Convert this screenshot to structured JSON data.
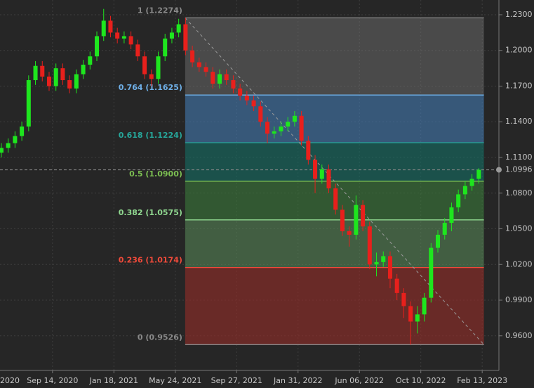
{
  "chart_data": {
    "type": "candlestick",
    "x": [
      -15,
      -13,
      -11,
      -9,
      -7,
      -5,
      -3,
      -1,
      1,
      3,
      5,
      7,
      9,
      11,
      13,
      15,
      17,
      19,
      21,
      23,
      25,
      27,
      29,
      31,
      33,
      35,
      37,
      39,
      41,
      43,
      45,
      47,
      49,
      51,
      53,
      55,
      57,
      59,
      61,
      63,
      65,
      67,
      69,
      71,
      73,
      75,
      77,
      79,
      81,
      83,
      85,
      87,
      89,
      91,
      93,
      95,
      97,
      99,
      101,
      103,
      105,
      107,
      109,
      111,
      113,
      115,
      117,
      119,
      121,
      123,
      125
    ],
    "open": [
      1.114,
      1.118,
      1.122,
      1.128,
      1.136,
      1.175,
      1.187,
      1.178,
      1.17,
      1.185,
      1.175,
      1.168,
      1.18,
      1.188,
      1.195,
      1.212,
      1.225,
      1.215,
      1.21,
      1.212,
      1.205,
      1.195,
      1.18,
      1.176,
      1.195,
      1.21,
      1.215,
      1.222,
      1.2,
      1.19,
      1.186,
      1.182,
      1.172,
      1.18,
      1.175,
      1.168,
      1.162,
      1.158,
      1.153,
      1.14,
      1.13,
      1.132,
      1.136,
      1.14,
      1.145,
      1.124,
      1.108,
      1.092,
      1.1,
      1.084,
      1.066,
      1.048,
      1.045,
      1.07,
      1.052,
      1.02,
      1.022,
      1.027,
      1.008,
      0.996,
      0.985,
      0.972,
      0.978,
      0.992,
      1.034,
      1.045,
      1.055,
      1.068,
      1.079,
      1.086,
      1.092
    ],
    "high": [
      1.122,
      1.126,
      1.132,
      1.14,
      1.179,
      1.191,
      1.191,
      1.182,
      1.189,
      1.189,
      1.179,
      1.184,
      1.192,
      1.199,
      1.216,
      1.2349,
      1.229,
      1.219,
      1.216,
      1.216,
      1.209,
      1.199,
      1.184,
      1.199,
      1.214,
      1.219,
      1.2266,
      1.2274,
      1.204,
      1.194,
      1.19,
      1.186,
      1.184,
      1.184,
      1.179,
      1.172,
      1.166,
      1.162,
      1.157,
      1.144,
      1.136,
      1.14,
      1.144,
      1.149,
      1.149,
      1.128,
      1.112,
      1.104,
      1.104,
      1.088,
      1.07,
      1.052,
      1.078,
      1.074,
      1.056,
      1.03,
      1.031,
      1.031,
      1.012,
      1.0,
      0.989,
      0.985,
      0.996,
      1.038,
      1.049,
      1.059,
      1.072,
      1.083,
      1.09,
      1.096,
      1.101
    ],
    "low": [
      1.11,
      1.114,
      1.118,
      1.124,
      1.132,
      1.171,
      1.174,
      1.166,
      1.166,
      1.171,
      1.164,
      1.164,
      1.176,
      1.184,
      1.191,
      1.208,
      1.211,
      1.206,
      1.206,
      1.201,
      1.191,
      1.176,
      1.17,
      1.172,
      1.191,
      1.206,
      1.211,
      1.196,
      1.186,
      1.182,
      1.178,
      1.168,
      1.168,
      1.171,
      1.164,
      1.158,
      1.154,
      1.149,
      1.136,
      1.122,
      1.126,
      1.128,
      1.132,
      1.136,
      1.12,
      1.104,
      1.08,
      1.088,
      1.08,
      1.062,
      1.044,
      1.035,
      1.041,
      1.048,
      1.016,
      1.01,
      1.018,
      1.0,
      0.99,
      0.975,
      0.9526,
      0.962,
      0.972,
      0.988,
      1.03,
      1.041,
      1.048,
      1.064,
      1.075,
      1.082,
      1.088
    ],
    "close": [
      1.118,
      1.122,
      1.128,
      1.136,
      1.175,
      1.187,
      1.178,
      1.17,
      1.185,
      1.175,
      1.168,
      1.18,
      1.188,
      1.195,
      1.212,
      1.225,
      1.215,
      1.21,
      1.212,
      1.205,
      1.195,
      1.18,
      1.176,
      1.195,
      1.21,
      1.215,
      1.222,
      1.2,
      1.19,
      1.186,
      1.182,
      1.172,
      1.18,
      1.175,
      1.168,
      1.162,
      1.158,
      1.153,
      1.14,
      1.13,
      1.132,
      1.136,
      1.14,
      1.145,
      1.124,
      1.108,
      1.092,
      1.1,
      1.084,
      1.066,
      1.048,
      1.045,
      1.07,
      1.052,
      1.02,
      1.022,
      1.027,
      1.008,
      0.996,
      0.985,
      0.972,
      0.978,
      0.992,
      1.034,
      1.045,
      1.055,
      1.068,
      1.079,
      1.086,
      1.092,
      1.0996
    ],
    "up_color": "#1ee61e",
    "down_color": "#e8201c",
    "xlim": [
      -15.4,
      130.9
    ],
    "ylim": [
      0.9309,
      1.2424
    ],
    "xticks": [
      {
        "value": -18,
        "label": "2020"
      },
      {
        "value": 0,
        "label": "Sep 14, 2020"
      },
      {
        "value": 18,
        "label": "Jan 18, 2021"
      },
      {
        "value": 36,
        "label": "May 24, 2021"
      },
      {
        "value": 54,
        "label": "Sep 27, 2021"
      },
      {
        "value": 72,
        "label": "Jan 31, 2022"
      },
      {
        "value": 90,
        "label": "Jun 06, 2022"
      },
      {
        "value": 108,
        "label": "Oct 10, 2022"
      },
      {
        "value": 126,
        "label": "Feb 13, 2023"
      }
    ],
    "yticks": [
      {
        "value": 1.23,
        "label": "1.2300"
      },
      {
        "value": 1.2,
        "label": "1.2000"
      },
      {
        "value": 1.17,
        "label": "1.1700"
      },
      {
        "value": 1.14,
        "label": "1.1400"
      },
      {
        "value": 1.11,
        "label": "1.1100"
      },
      {
        "value": 1.08,
        "label": "1.0800"
      },
      {
        "value": 1.05,
        "label": "1.0500"
      },
      {
        "value": 1.02,
        "label": "1.0200"
      },
      {
        "value": 0.99,
        "label": "0.9900"
      },
      {
        "value": 0.96,
        "label": "0.9600"
      }
    ],
    "grid": true,
    "last_price": 1.0996,
    "fibonacci": {
      "x_start": 38.9,
      "x_end": 126.5,
      "levels": [
        {
          "value": 1.2274,
          "label": "1 (1.2274)",
          "color": "#8a8a8a",
          "fill": "rgba(120,120,120,0.45)"
        },
        {
          "value": 1.1625,
          "label": "0.764 (1.1625)",
          "color": "#6fb0e8",
          "fill": "rgba(70,130,190,0.55)"
        },
        {
          "value": 1.1224,
          "label": "0.618 (1.1224)",
          "color": "#26a69a",
          "fill": "rgba(20,110,100,0.6)"
        },
        {
          "value": 1.09,
          "label": "0.5 (1.0900)",
          "color": "#7cbf52",
          "fill": "rgba(60,130,60,0.55)"
        },
        {
          "value": 1.0575,
          "label": "0.382 (1.0575)",
          "color": "#90d890",
          "fill": "rgba(90,140,90,0.55)"
        },
        {
          "value": 1.0174,
          "label": "0.236 (1.0174)",
          "color": "#ef4a3a",
          "fill": "rgba(150,45,40,0.6)"
        },
        {
          "value": 0.9526,
          "label": "0 (0.9526)",
          "color": "#8a8a8a"
        }
      ]
    }
  }
}
